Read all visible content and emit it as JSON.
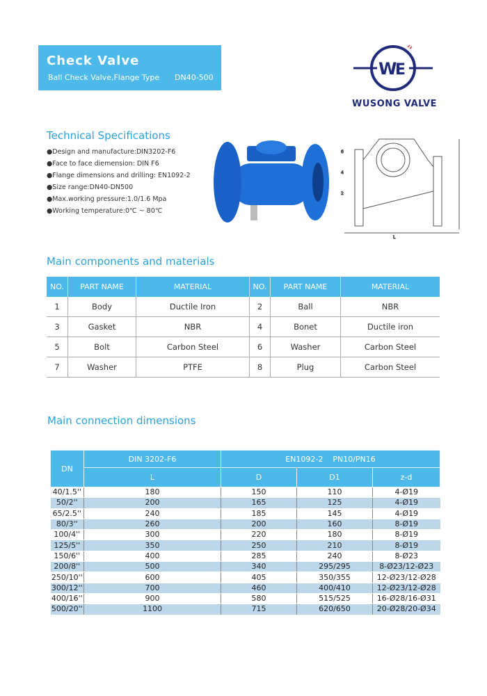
{
  "header": {
    "title": "Check Valve",
    "subtitle": "Ball Check Valve,Flange Type",
    "range": "DN40-500"
  },
  "logo": {
    "text": "WUSONG VALVE",
    "color": "#1f2a7a"
  },
  "specs": {
    "title": "Technical Specifications",
    "items": [
      "●Design and manufacture:DIN3202-F6",
      "●Face to face diemension: DIN F6",
      "●Flange dimensions and drilling: EN1092-2",
      "●Size range:DN40-DN500",
      "●Max.working pressure:1.0/1.6 Mpa",
      "●Working temperature:0℃ ~ 80℃"
    ]
  },
  "components": {
    "title": "Main components and materials",
    "headers": [
      "NO.",
      "PART NAME",
      "MATERIAL",
      "NO.",
      "PART NAME",
      "MATERIAL"
    ],
    "rows": [
      [
        "1",
        "Body",
        "Ductile Iron",
        "2",
        "Ball",
        "NBR"
      ],
      [
        "3",
        "Gasket",
        "NBR",
        "4",
        "Bonet",
        "Ductile iron"
      ],
      [
        "5",
        "Bolt",
        "Carbon Steel",
        "6",
        "Washer",
        "Carbon Steel"
      ],
      [
        "7",
        "Washer",
        "PTFE",
        "8",
        "Plug",
        "Carbon Steel"
      ]
    ]
  },
  "dimensions": {
    "title": "Main connection dimensions",
    "header_dn": "DN",
    "header_din": "DIN 3202-F6",
    "header_en": "EN1092-2    PN10/PN16",
    "subheaders": [
      "L",
      "D",
      "D1",
      "z-d"
    ],
    "rows": [
      [
        "40/1.5''",
        "180",
        "150",
        "110",
        "4-Ø19"
      ],
      [
        "50/2''",
        "200",
        "165",
        "125",
        "4-Ø19"
      ],
      [
        "65/2.5''",
        "240",
        "185",
        "145",
        "4-Ø19"
      ],
      [
        "80/3''",
        "260",
        "200",
        "160",
        "8-Ø19"
      ],
      [
        "100/4''",
        "300",
        "220",
        "180",
        "8-Ø19"
      ],
      [
        "125/5''",
        "350",
        "250",
        "210",
        "8-Ø19"
      ],
      [
        "150/6''",
        "400",
        "285",
        "240",
        "8-Ø23"
      ],
      [
        "200/8''",
        "500",
        "340",
        "295/295",
        "8-Ø23/12-Ø23"
      ],
      [
        "250/10''",
        "600",
        "405",
        "350/355",
        "12-Ø23/12-Ø28"
      ],
      [
        "300/12''",
        "700",
        "460",
        "400/410",
        "12-Ø23/12-Ø28"
      ],
      [
        "400/16''",
        "900",
        "580",
        "515/525",
        "16-Ø28/16-Ø31"
      ],
      [
        "500/20''",
        "1100",
        "715",
        "620/650",
        "20-Ø28/20-Ø34"
      ]
    ]
  },
  "colors": {
    "accent": "#4db8ea",
    "row_alt": "#bcd6ea",
    "valve_blue": "#1e6fd6"
  }
}
